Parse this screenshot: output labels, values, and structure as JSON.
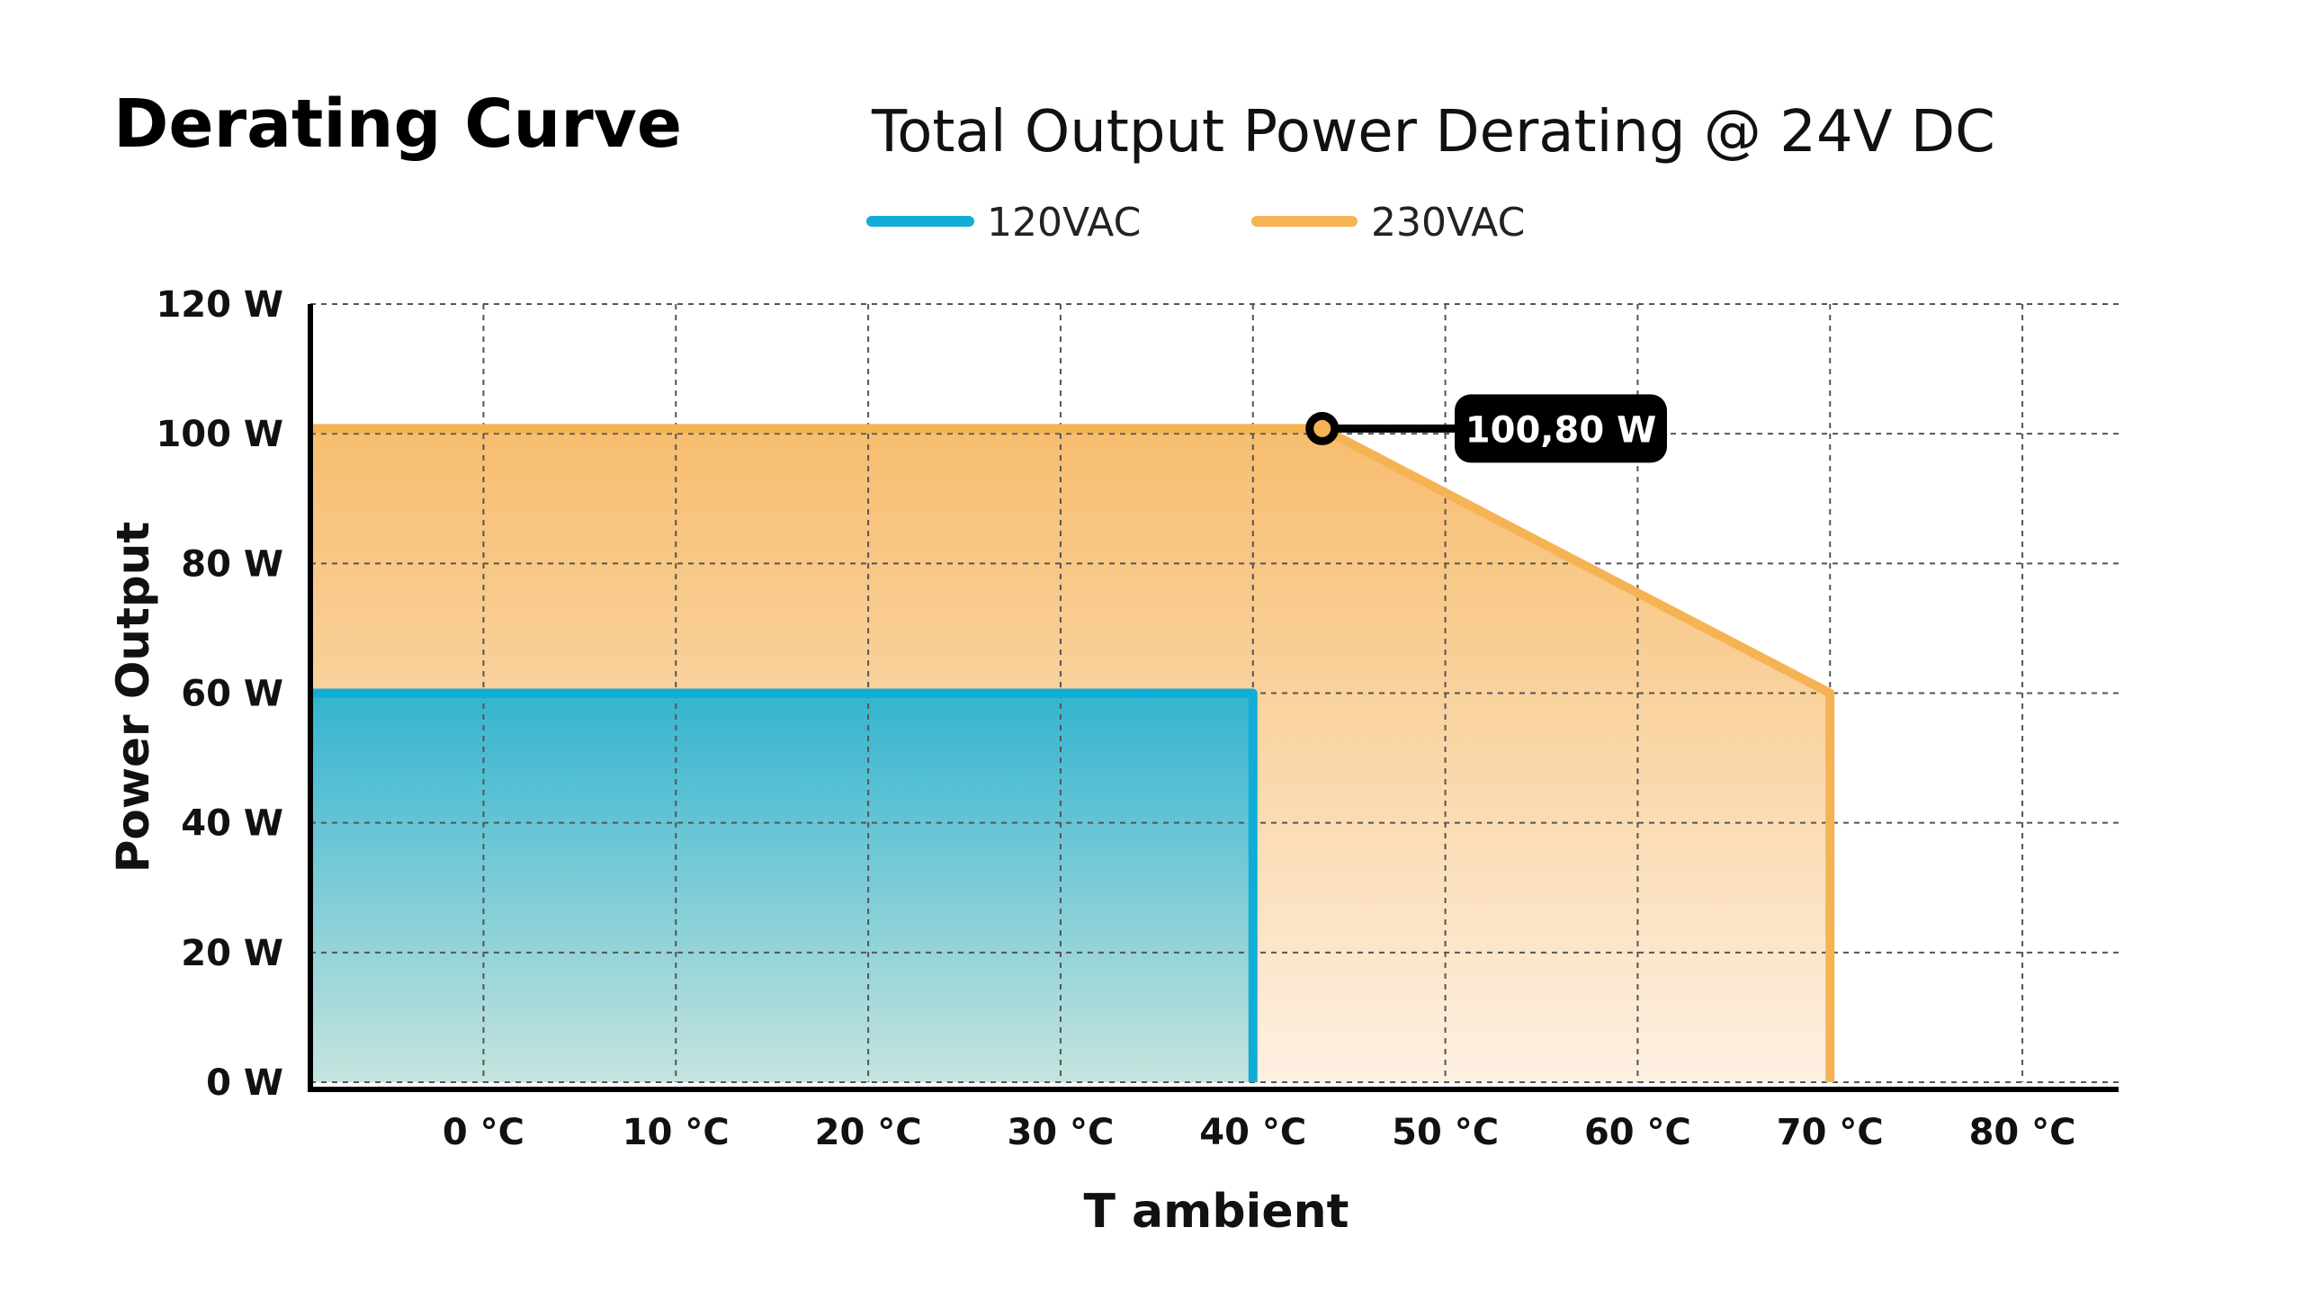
{
  "page_title": "Derating Curve",
  "chart_data": {
    "type": "area",
    "title": "Total Output Power Derating @ 24V DC",
    "xlabel": "T ambient",
    "ylabel": "Power Output",
    "xlim": [
      -9,
      85
    ],
    "ylim": [
      0,
      120
    ],
    "x_ticks": [
      0,
      10,
      20,
      30,
      40,
      50,
      60,
      70,
      80
    ],
    "x_tick_labels": [
      "0 °C",
      "10 °C",
      "20 °C",
      "30 °C",
      "40 °C",
      "50 °C",
      "60 °C",
      "70 °C",
      "80 °C"
    ],
    "y_ticks": [
      0,
      20,
      40,
      60,
      80,
      100,
      120
    ],
    "y_tick_labels": [
      "0 W",
      "20 W",
      "40 W",
      "60 W",
      "80 W",
      "100 W",
      "120 W"
    ],
    "grid": true,
    "legend_position": "top-center",
    "series": [
      {
        "name": "230VAC",
        "color": "#f5b354",
        "points": [
          [
            -9,
            0
          ],
          [
            -9,
            100.8
          ],
          [
            43.6,
            100.8
          ],
          [
            70,
            60
          ],
          [
            70,
            0
          ]
        ]
      },
      {
        "name": "120VAC",
        "color": "#10add6",
        "points": [
          [
            -9,
            0
          ],
          [
            -9,
            60
          ],
          [
            40,
            60
          ],
          [
            40,
            0
          ]
        ]
      }
    ],
    "annotations": [
      {
        "label": "100,80 W",
        "x": 43.6,
        "y": 100.8
      }
    ]
  }
}
